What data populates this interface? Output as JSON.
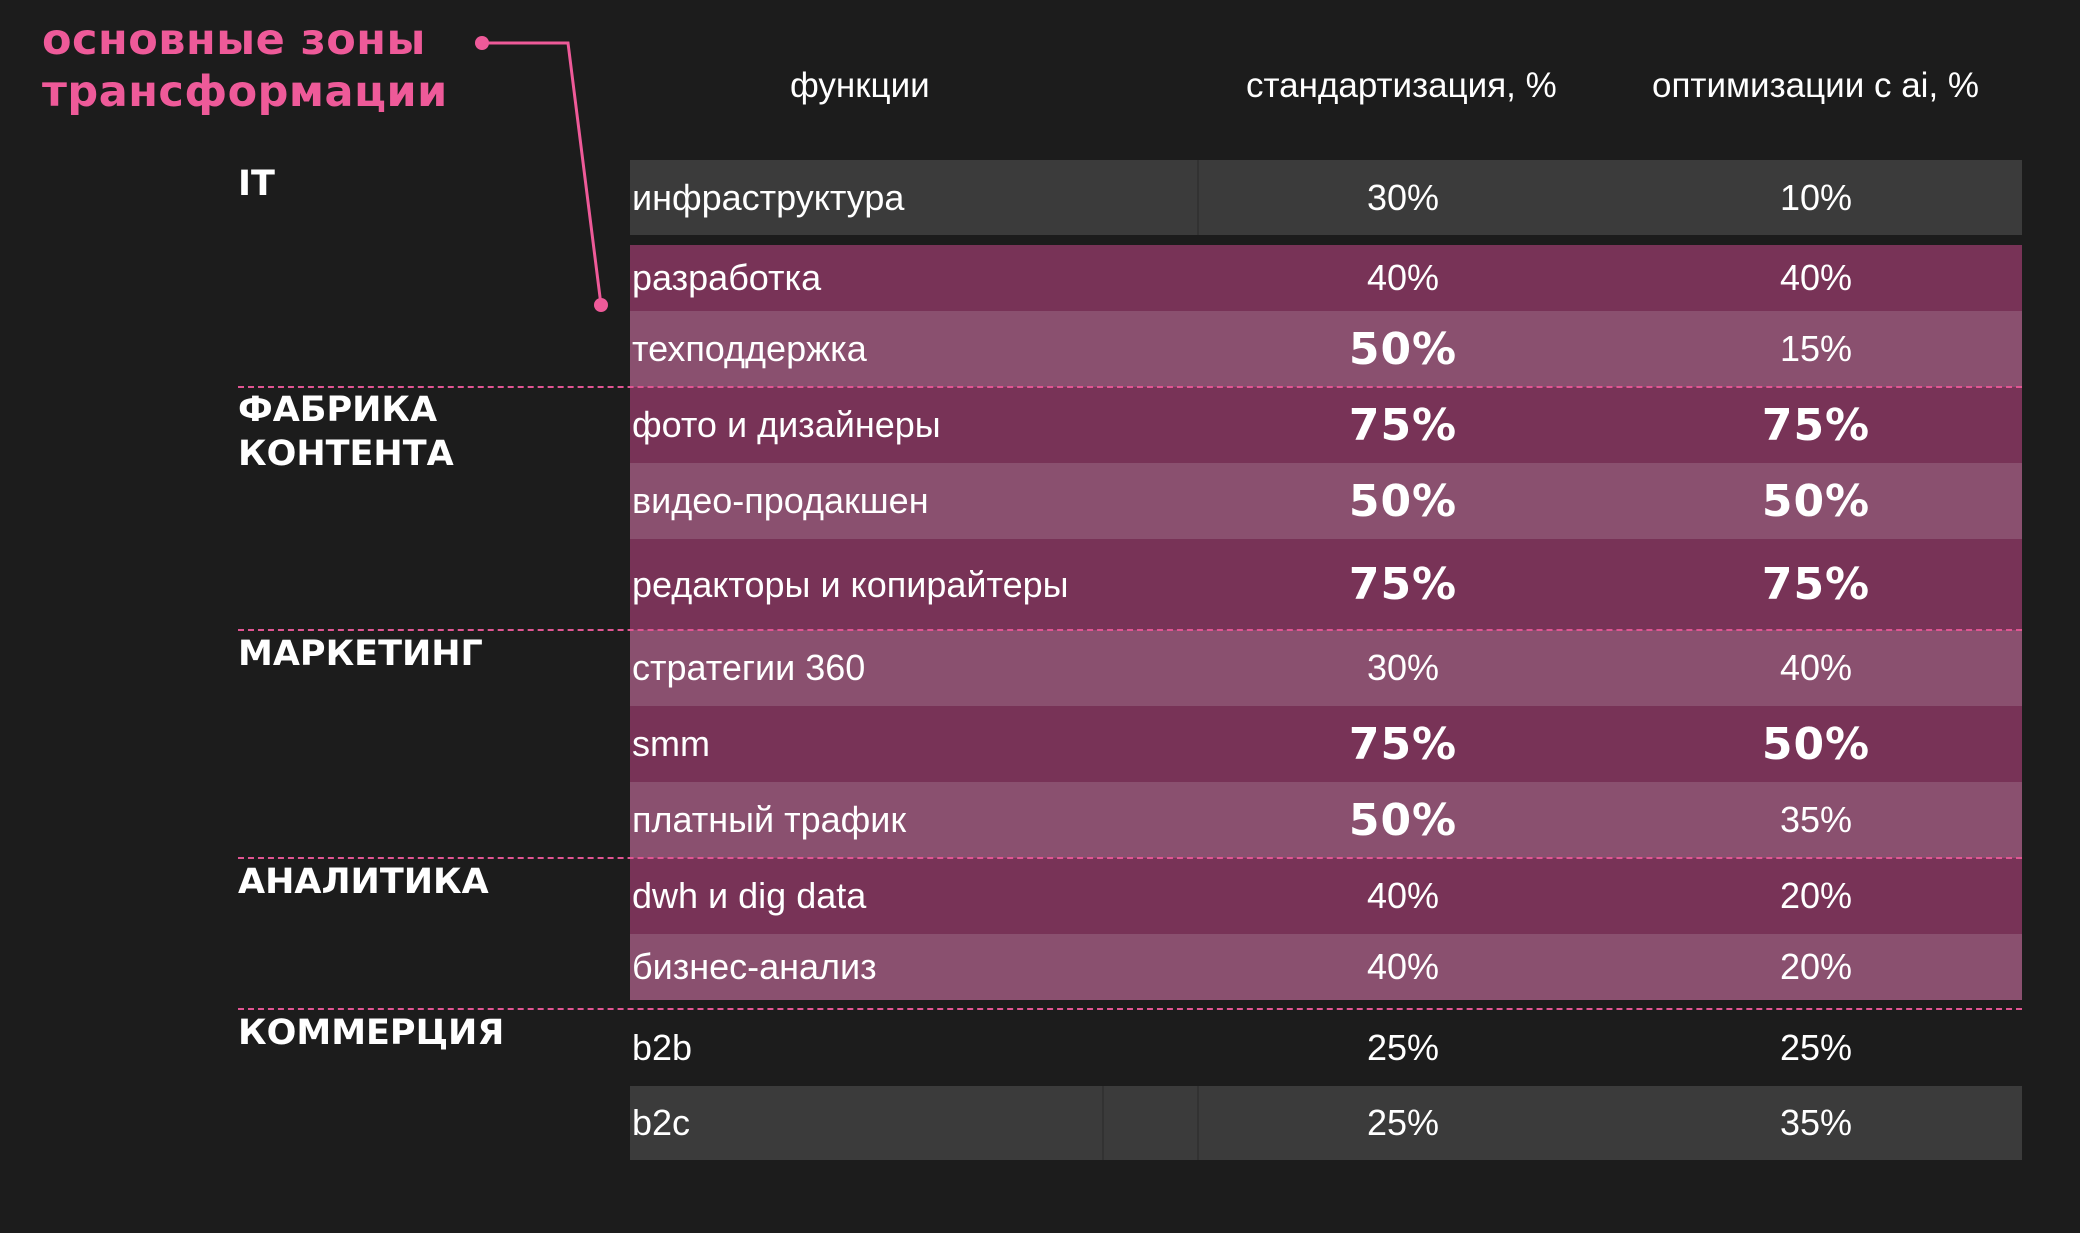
{
  "title": [
    "основные зоны",
    "трансформации"
  ],
  "headers": {
    "functions": "функции",
    "standardization": "стандартизация, %",
    "ai_optimization": "оптимизации с ai, %"
  },
  "groups": [
    {
      "lines": [
        "IT"
      ]
    },
    {
      "lines": [
        "ФАБРИКА",
        "КОНТЕНТА"
      ]
    },
    {
      "lines": [
        "МАРКЕТИНГ"
      ]
    },
    {
      "lines": [
        "АНАЛИТИКА"
      ]
    },
    {
      "lines": [
        "КОММЕРЦИЯ"
      ]
    }
  ],
  "rows": [
    {
      "name": "инфраструктура",
      "std": "30%",
      "ai": "10%"
    },
    {
      "name": "разработка",
      "std": "40%",
      "ai": "40%"
    },
    {
      "name": "техподдержка",
      "std": "50%",
      "ai": "15%"
    },
    {
      "name": "фото и дизайнеры",
      "std": "75%",
      "ai": "75%"
    },
    {
      "name": "видео-продакшен",
      "std": "50%",
      "ai": "50%"
    },
    {
      "name": "редакторы и копирайтеры",
      "std": "75%",
      "ai": "75%"
    },
    {
      "name": "стратегии 360",
      "std": "30%",
      "ai": "40%"
    },
    {
      "name": "smm",
      "std": "75%",
      "ai": "50%"
    },
    {
      "name": "платный трафик",
      "std": "50%",
      "ai": "35%"
    },
    {
      "name": "dwh и dig data",
      "std": "40%",
      "ai": "20%"
    },
    {
      "name": "бизнес-анализ",
      "std": "40%",
      "ai": "20%"
    },
    {
      "name": "b2b",
      "std": "25%",
      "ai": "25%"
    },
    {
      "name": "b2c",
      "std": "25%",
      "ai": "35%"
    }
  ],
  "colors": {
    "background": "#1c1c1c",
    "accent": "#ee5a99",
    "row_gray": "#3b3b3b",
    "row_dark": "#783357",
    "row_light": "#8a506f"
  }
}
